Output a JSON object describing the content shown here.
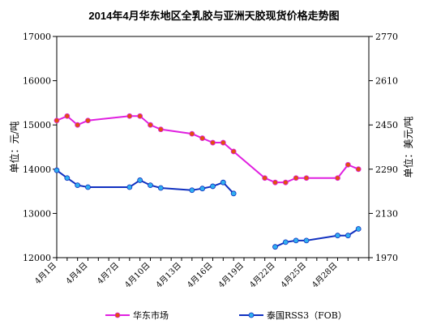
{
  "chart_data": {
    "type": "line",
    "title": "2014年4月华东地区全乳胶与亚洲天胶现货价格走势图",
    "ylabel_left": "单位：元/吨",
    "ylabel_right": "单位：美元/吨",
    "x_tick_labels": [
      "4月1日",
      "4月4日",
      "4月7日",
      "4月10日",
      "4月13日",
      "4月16日",
      "4月19日",
      "4月22日",
      "4月25日",
      "4月28日"
    ],
    "y_left": {
      "min": 12000,
      "max": 17000,
      "ticks": [
        12000,
        13000,
        14000,
        15000,
        16000,
        17000
      ]
    },
    "y_right": {
      "min": 1970,
      "max": 2770,
      "ticks": [
        1970,
        2130,
        2290,
        2450,
        2610,
        2770
      ]
    },
    "grid": false,
    "legend_position": "bottom",
    "series": [
      {
        "name": "华东市场",
        "axis": "left",
        "color": "#e020e0",
        "marker_color": "#e05010",
        "points": [
          [
            1,
            15100
          ],
          [
            2,
            15200
          ],
          [
            3,
            15000
          ],
          [
            4,
            15100
          ],
          [
            8,
            15200
          ],
          [
            9,
            15200
          ],
          [
            10,
            15000
          ],
          [
            11,
            14900
          ],
          [
            14,
            14800
          ],
          [
            15,
            14700
          ],
          [
            16,
            14600
          ],
          [
            17,
            14600
          ],
          [
            18,
            14400
          ],
          [
            21,
            13800
          ],
          [
            22,
            13700
          ],
          [
            23,
            13700
          ],
          [
            24,
            13800
          ],
          [
            25,
            13800
          ],
          [
            28,
            13800
          ],
          [
            29,
            14100
          ],
          [
            30,
            14000
          ]
        ]
      },
      {
        "name": "泰国RSS3（FOB）",
        "axis": "right",
        "color": "#1030c0",
        "marker_color": "#30b0f0",
        "points": [
          [
            1,
            2286
          ],
          [
            2,
            2258
          ],
          [
            3,
            2232
          ],
          [
            4,
            2225
          ],
          [
            8,
            2225
          ],
          [
            9,
            2250
          ],
          [
            10,
            2232
          ],
          [
            11,
            2222
          ],
          [
            14,
            2214
          ],
          [
            15,
            2220
          ],
          [
            16,
            2228
          ],
          [
            17,
            2242
          ],
          [
            18,
            2202
          ]
        ],
        "points_2": [
          [
            22,
            2009
          ],
          [
            23,
            2026
          ],
          [
            24,
            2032
          ],
          [
            25,
            2032
          ],
          [
            28,
            2050
          ],
          [
            29,
            2050
          ],
          [
            30,
            2074
          ]
        ]
      }
    ]
  }
}
